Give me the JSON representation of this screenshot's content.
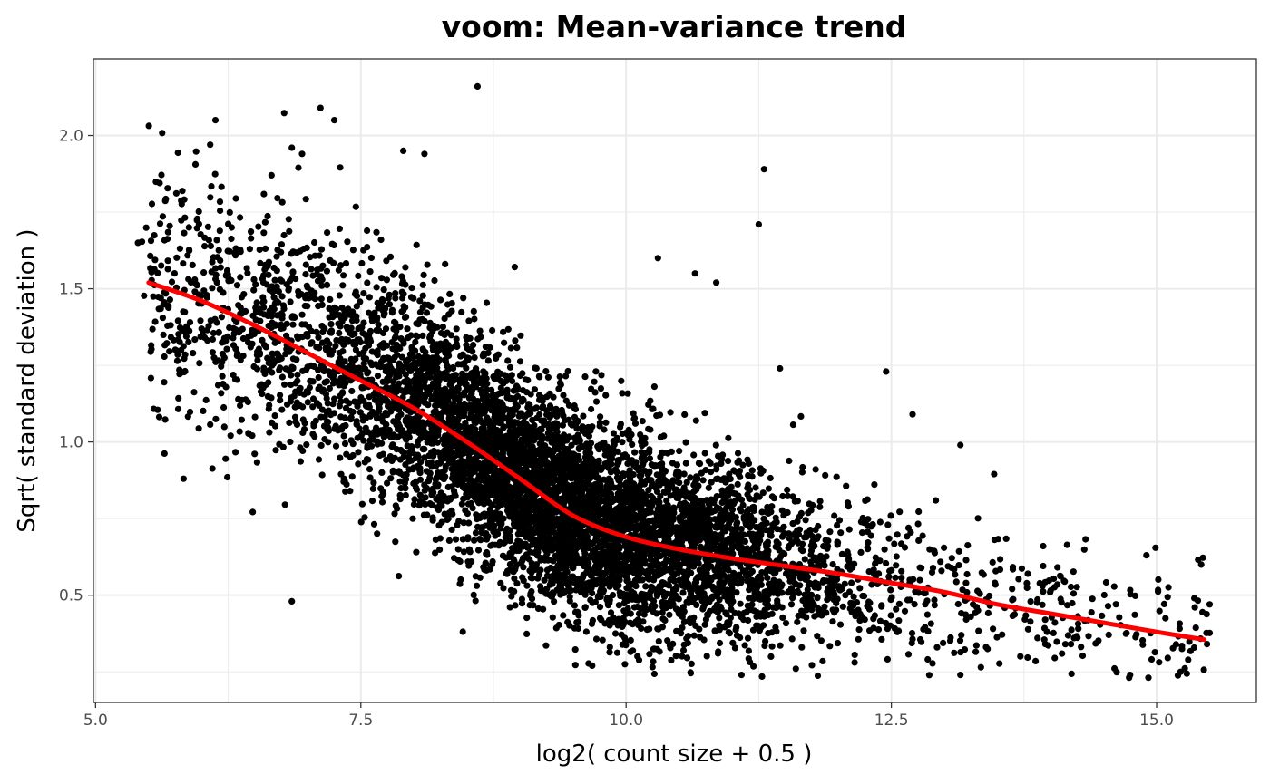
{
  "chart_data": {
    "type": "scatter",
    "title": "voom: Mean-variance trend",
    "xlabel": "log2( count size + 0.5 )",
    "ylabel": "Sqrt( standard deviation )",
    "xlim": [
      4.98,
      15.94
    ],
    "ylim": [
      0.15,
      2.25
    ],
    "x_ticks": [
      5.0,
      7.5,
      10.0,
      12.5,
      15.0
    ],
    "x_tick_labels": [
      "5.0",
      "7.5",
      "10.0",
      "12.5",
      "15.0"
    ],
    "y_ticks": [
      0.5,
      1.0,
      1.5,
      2.0
    ],
    "y_tick_labels": [
      "0.5",
      "1.0",
      "1.5",
      "2.0"
    ],
    "grid": true,
    "legend": "none",
    "colors": {
      "points": "#000000",
      "trend": "#ff0000",
      "grid": "#ebebeb",
      "panel_border": "#333333"
    },
    "series": [
      {
        "kind": "points",
        "point_count": 7000,
        "cloud_trend": {
          "x": [
            5.5,
            6.0,
            6.5,
            7.0,
            7.5,
            8.0,
            8.5,
            9.0,
            9.5,
            10.0,
            10.5,
            11.0,
            11.5,
            12.0,
            12.5,
            13.0,
            13.5,
            14.0,
            14.5,
            15.0,
            15.45
          ],
          "y": [
            1.5,
            1.45,
            1.38,
            1.31,
            1.22,
            1.12,
            1.01,
            0.87,
            0.77,
            0.71,
            0.67,
            0.63,
            0.6,
            0.57,
            0.53,
            0.5,
            0.46,
            0.42,
            0.4,
            0.37,
            0.35
          ]
        },
        "outliers": [
          {
            "x": 8.6,
            "y": 2.16
          },
          {
            "x": 7.12,
            "y": 2.09
          },
          {
            "x": 7.25,
            "y": 2.05
          },
          {
            "x": 6.13,
            "y": 2.05
          },
          {
            "x": 6.08,
            "y": 1.97
          },
          {
            "x": 6.85,
            "y": 1.96
          },
          {
            "x": 7.9,
            "y": 1.95
          },
          {
            "x": 8.1,
            "y": 1.94
          },
          {
            "x": 11.3,
            "y": 1.89
          },
          {
            "x": 11.25,
            "y": 1.71
          },
          {
            "x": 10.3,
            "y": 1.6
          },
          {
            "x": 10.65,
            "y": 1.55
          },
          {
            "x": 10.85,
            "y": 1.52
          },
          {
            "x": 11.45,
            "y": 1.24
          },
          {
            "x": 12.45,
            "y": 1.23
          },
          {
            "x": 12.7,
            "y": 1.09
          },
          {
            "x": 13.15,
            "y": 0.99
          },
          {
            "x": 5.83,
            "y": 0.88
          },
          {
            "x": 6.85,
            "y": 0.48
          },
          {
            "x": 5.4,
            "y": 1.65
          },
          {
            "x": 15.42,
            "y": 0.6
          },
          {
            "x": 15.5,
            "y": 0.47
          },
          {
            "x": 14.75,
            "y": 0.24
          },
          {
            "x": 13.15,
            "y": 0.24
          },
          {
            "x": 11.6,
            "y": 0.26
          },
          {
            "x": 9.68,
            "y": 0.27
          }
        ]
      },
      {
        "kind": "line",
        "x": [
          5.5,
          6.0,
          6.5,
          7.0,
          7.5,
          8.0,
          8.5,
          9.0,
          9.5,
          10.0,
          10.5,
          11.0,
          11.5,
          12.0,
          12.5,
          13.0,
          13.5,
          14.0,
          14.5,
          15.0,
          15.45
        ],
        "y": [
          1.52,
          1.46,
          1.38,
          1.29,
          1.2,
          1.11,
          1.0,
          0.88,
          0.76,
          0.69,
          0.65,
          0.62,
          0.595,
          0.57,
          0.54,
          0.51,
          0.47,
          0.44,
          0.41,
          0.38,
          0.355
        ]
      }
    ]
  }
}
